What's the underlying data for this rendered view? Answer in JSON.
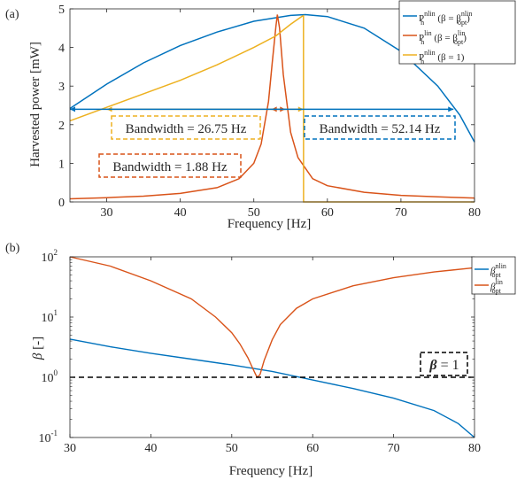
{
  "panels": {
    "a": {
      "label": "(a)"
    },
    "b": {
      "label": "(b)"
    }
  },
  "colors": {
    "blue": "#0072BD",
    "orange": "#D95319",
    "yellow": "#EDB120",
    "axis": "#262626"
  },
  "chart_data": [
    {
      "type": "line",
      "panel": "(a)",
      "xlabel": "Frequency [Hz]",
      "ylabel": "Harvested power [mW]",
      "xlim": [
        25,
        80
      ],
      "ylim": [
        0,
        5
      ],
      "xticks": [
        30,
        40,
        50,
        60,
        70,
        80
      ],
      "yticks": [
        0,
        1,
        2,
        3,
        4,
        5
      ],
      "grid": false,
      "legend_position": "top-right outside",
      "series": [
        {
          "name": "P_h^nlin (β = β_opt^nlin)",
          "color": "#0072BD",
          "x": [
            25,
            30,
            35,
            40,
            45,
            50,
            55,
            57,
            60,
            65,
            70,
            75,
            78,
            80
          ],
          "y": [
            2.42,
            3.05,
            3.6,
            4.05,
            4.4,
            4.68,
            4.83,
            4.85,
            4.8,
            4.5,
            3.9,
            3.0,
            2.25,
            1.55
          ]
        },
        {
          "name": "P_h^lin (β = β_opt^lin)",
          "color": "#D95319",
          "x": [
            25,
            30,
            35,
            40,
            45,
            48,
            50,
            51,
            52,
            52.5,
            53,
            53.2,
            53.5,
            54,
            55,
            56,
            58,
            60,
            65,
            70,
            75,
            80
          ],
          "y": [
            0.08,
            0.11,
            0.15,
            0.22,
            0.37,
            0.6,
            1.0,
            1.5,
            2.6,
            3.6,
            4.55,
            4.85,
            4.5,
            3.3,
            1.8,
            1.15,
            0.6,
            0.42,
            0.25,
            0.17,
            0.13,
            0.1
          ]
        },
        {
          "name": "P_h^nlin (β = 1)",
          "color": "#EDB120",
          "x": [
            25,
            30,
            35,
            40,
            45,
            50,
            53,
            55,
            56.5,
            56.75,
            56.76,
            60,
            70,
            80
          ],
          "y": [
            2.1,
            2.45,
            2.8,
            3.15,
            3.55,
            4.0,
            4.3,
            4.6,
            4.8,
            4.82,
            0.0,
            0.0,
            0.0,
            0.0
          ]
        }
      ],
      "bandwidth_arrows": [
        {
          "color": "#D95319",
          "x": [
            52.4,
            54.28
          ],
          "y": 2.4
        },
        {
          "color": "#EDB120",
          "x": [
            30.0,
            56.75
          ],
          "y": 2.4
        },
        {
          "color": "#0072BD",
          "x": [
            25.0,
            77.14
          ],
          "y": 2.4
        }
      ],
      "annotations": [
        {
          "text": "Bandwidth = 26.75 Hz",
          "color": "#EDB120",
          "position": "upper-middle-left"
        },
        {
          "text": "Bandwidth = 52.14 Hz",
          "color": "#0072BD",
          "position": "upper-right"
        },
        {
          "text": "Bandwidth = 1.88 Hz",
          "color": "#D95319",
          "position": "middle-left"
        }
      ]
    },
    {
      "type": "line",
      "panel": "(b)",
      "xlabel": "Frequency [Hz]",
      "ylabel": "β [-]",
      "xlim": [
        30,
        80
      ],
      "ylim": [
        0.1,
        100
      ],
      "yscale": "log",
      "xticks": [
        30,
        40,
        50,
        60,
        70,
        80
      ],
      "yticks": [
        0.1,
        1,
        10,
        100
      ],
      "ytick_labels": [
        "10^-1",
        "10^0",
        "10^1",
        "10^2"
      ],
      "grid": false,
      "legend_position": "top-right outside",
      "series": [
        {
          "name": "β_opt^nlin",
          "color": "#0072BD",
          "x": [
            30,
            35,
            40,
            45,
            50,
            55,
            60,
            65,
            70,
            75,
            78,
            80
          ],
          "y": [
            4.3,
            3.2,
            2.5,
            2.0,
            1.6,
            1.25,
            0.9,
            0.65,
            0.45,
            0.28,
            0.17,
            0.1
          ]
        },
        {
          "name": "β_opt^lin",
          "color": "#D95319",
          "x": [
            30,
            35,
            40,
            45,
            48,
            50,
            51,
            52,
            52.5,
            53,
            53.2,
            53.5,
            54,
            55,
            56,
            58,
            60,
            65,
            70,
            75,
            80
          ],
          "y": [
            100,
            70,
            40,
            20,
            10,
            5.5,
            3.6,
            2.1,
            1.5,
            1.08,
            1.0,
            1.12,
            1.9,
            4.2,
            7.5,
            14,
            20,
            33,
            45,
            56,
            66
          ]
        },
        {
          "name": "",
          "color": "#000000",
          "dashed": true,
          "x": [
            30,
            80
          ],
          "y": [
            1,
            1
          ]
        }
      ],
      "annotations": [
        {
          "text": "β = 1",
          "color": "#000000",
          "position": "right-middle"
        }
      ]
    }
  ]
}
